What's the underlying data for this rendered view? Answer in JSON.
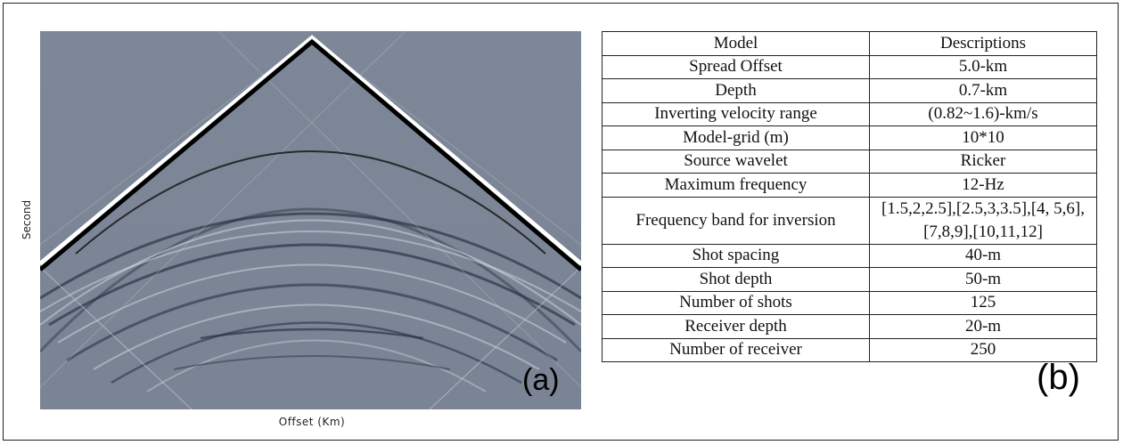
{
  "panel_a": {
    "y_label": "Second",
    "x_label": "Offset (Km)",
    "tag": "(a)"
  },
  "panel_b": {
    "tag": "(b)",
    "table": {
      "header": [
        "Model",
        "Descriptions"
      ],
      "rows": [
        [
          "Spread Offset",
          "5.0-km"
        ],
        [
          "Depth",
          "0.7-km"
        ],
        [
          "Inverting velocity range",
          "(0.82~1.6)-km/s"
        ],
        [
          "Model-grid (m)",
          "10*10"
        ],
        [
          "Source wavelet",
          "Ricker"
        ],
        [
          "Maximum frequency",
          "12-Hz"
        ],
        [
          "Frequency band for inversion",
          "[1.5,2,2.5],[2.5,3,3.5],[4, 5,6],[7,8,9],[10,11,12]"
        ],
        [
          "Shot spacing",
          "40-m"
        ],
        [
          "Shot depth",
          "50-m"
        ],
        [
          "Number of shots",
          "125"
        ],
        [
          "Receiver depth",
          "20-m"
        ],
        [
          "Number of receiver",
          "250"
        ]
      ]
    }
  }
}
